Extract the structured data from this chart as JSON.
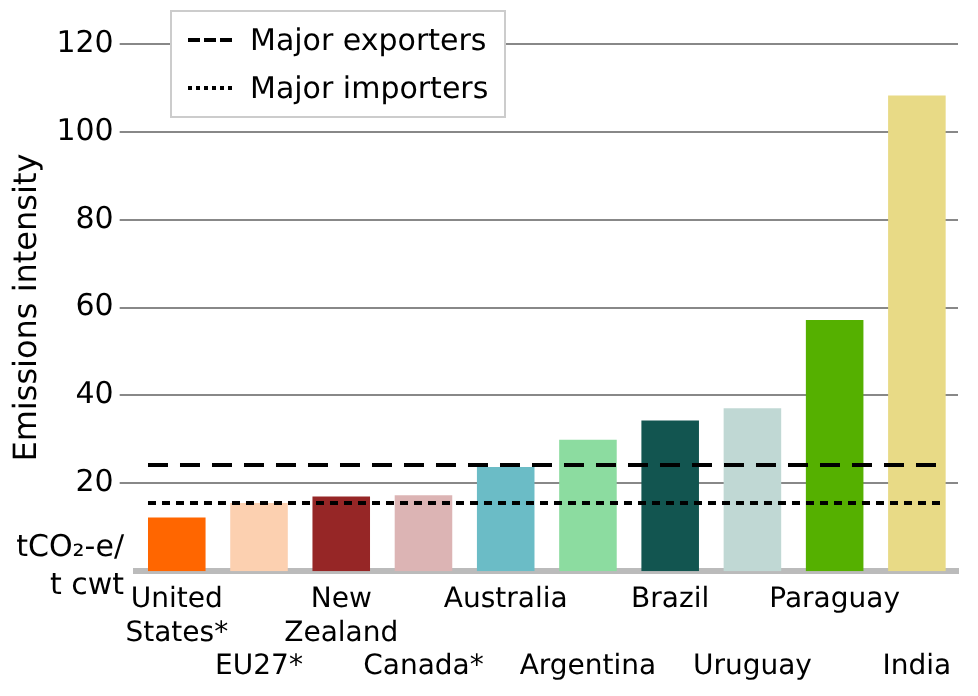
{
  "chart_data": {
    "type": "bar",
    "ylabel": "Emissions intensity",
    "categories": [
      "United States*",
      "EU27*",
      "New Zealand",
      "Canada*",
      "Australia",
      "Argentina",
      "Brazil",
      "Uruguay",
      "Paraguay",
      "India"
    ],
    "values": [
      12.2,
      15.5,
      17,
      17.3,
      23.7,
      29.9,
      34.3,
      37.1,
      57.2,
      108.3
    ],
    "colors": [
      "#ff6600",
      "#fcd0b0",
      "#962626",
      "#dcb4b4",
      "#6bbcc6",
      "#8cdca0",
      "#125550",
      "#c0d8d4",
      "#55b000",
      "#e8da86"
    ],
    "ylim": [
      0,
      120
    ],
    "yticks": [
      20,
      40,
      60,
      80,
      100,
      120
    ],
    "grid": "y",
    "legend": "top left",
    "ref_lines": [
      {
        "axis": "y",
        "value": 24.2,
        "label": "Major exporters",
        "color": "#000000",
        "line_style": "dashed"
      },
      {
        "axis": "y",
        "value": 15.5,
        "label": "Major importers",
        "color": "#000000",
        "line_style": "dotted"
      }
    ],
    "annotations": [
      "tCO₂-e/ t cwt"
    ]
  }
}
